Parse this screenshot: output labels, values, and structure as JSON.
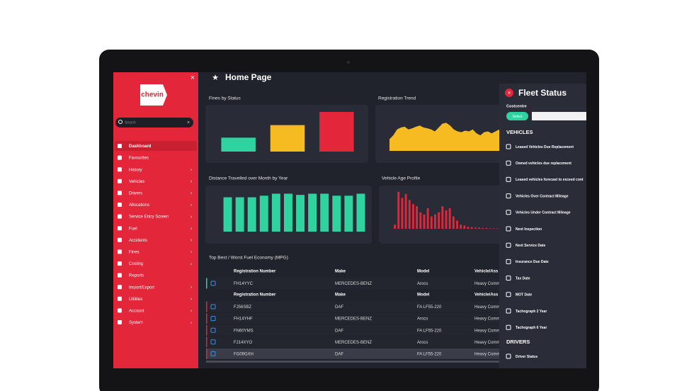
{
  "sidebar": {
    "logo": "chevin",
    "search_placeholder": "Search",
    "menu": [
      "Dashboard",
      "Favourites",
      "History",
      "Vehicles",
      "Drivers",
      "Allocations",
      "Service Entry Screen",
      "Fuel",
      "Accidents",
      "Fines",
      "Costing",
      "Reports",
      "Import/Export",
      "Utilities",
      "Account",
      "System"
    ]
  },
  "header": {
    "title": "Home Page"
  },
  "charts": [
    {
      "type": "bar",
      "title": "Fines by Status",
      "values": [
        20,
        38,
        57
      ],
      "colors": [
        "#2fd3a0",
        "#f7bb22",
        "#e3263a"
      ],
      "ylim": [
        0,
        60
      ]
    },
    {
      "type": "area",
      "title": "Registration Trend",
      "values": [
        30,
        40,
        55,
        60,
        62,
        55,
        58,
        62,
        65,
        60,
        58,
        55,
        50,
        60,
        70,
        72,
        65,
        55,
        50,
        48,
        52,
        50,
        55,
        45,
        40,
        48,
        50,
        45,
        50,
        55
      ],
      "color": "#f7bb22",
      "ylim": [
        0,
        100
      ]
    },
    {
      "type": "bar",
      "title": "Distance Travelled over Month by Year",
      "values": [
        86,
        86,
        86,
        90,
        95,
        95,
        92,
        95,
        95,
        90,
        90,
        95
      ],
      "color": "#2fd3a0",
      "ylim": [
        0,
        110
      ]
    },
    {
      "type": "bar",
      "title": "Vehicle Age Profile",
      "values": [
        10,
        90,
        75,
        85,
        70,
        60,
        55,
        40,
        35,
        50,
        30,
        35,
        40,
        55,
        45,
        50,
        30,
        20,
        10,
        8,
        5,
        4,
        3,
        3,
        2,
        2,
        1,
        1,
        1
      ],
      "color": "#e3263a",
      "ylim": [
        0,
        100
      ]
    }
  ],
  "table": {
    "title": "Top Best / Worst Fuel Economy (MPG)",
    "header": [
      "Registration Number",
      "Make",
      "Model",
      "Vehicle/Ass"
    ],
    "best_rows": [
      [
        "FH14YYC",
        "MERCEDES-BENZ",
        "Arocs",
        "Heavy Comm"
      ]
    ],
    "worst_rows": [
      [
        "FJ56SBZ",
        "DAF",
        "FA LF55-220",
        "Heavy Comm"
      ],
      [
        "FH14YHF",
        "MERCEDES-BENZ",
        "Arocs",
        "Heavy Comm"
      ],
      [
        "FN60YMS",
        "DAF",
        "FA LF55-220",
        "Heavy Comm"
      ],
      [
        "FJ14XYO",
        "MERCEDES-BENZ",
        "Arocs",
        "Heavy Comm"
      ],
      [
        "FG09GXH",
        "DAF",
        "FA LF55-220",
        "Heavy Comm"
      ]
    ]
  },
  "fleet_status": {
    "title": "Fleet Status",
    "costcentre_label": "Costcentre",
    "select_button": "Select",
    "vehicles_heading": "VEHICLES",
    "vehicle_items": [
      "Leased Vehicles Due Replacement",
      "Owned vehicles due replacement",
      "Leased vehicles forecast to exceed cont",
      "Vehicles Over Contract Mileage",
      "Vehicles Under Contract Mileage",
      "Next Inspection",
      "Next Service Date",
      "Insurance Due Date",
      "Tax Date",
      "MOT Date",
      "Tachograph 2 Year",
      "Tachograph 6 Year"
    ],
    "drivers_heading": "DRIVERS",
    "driver_items": [
      "Driver Status"
    ]
  }
}
